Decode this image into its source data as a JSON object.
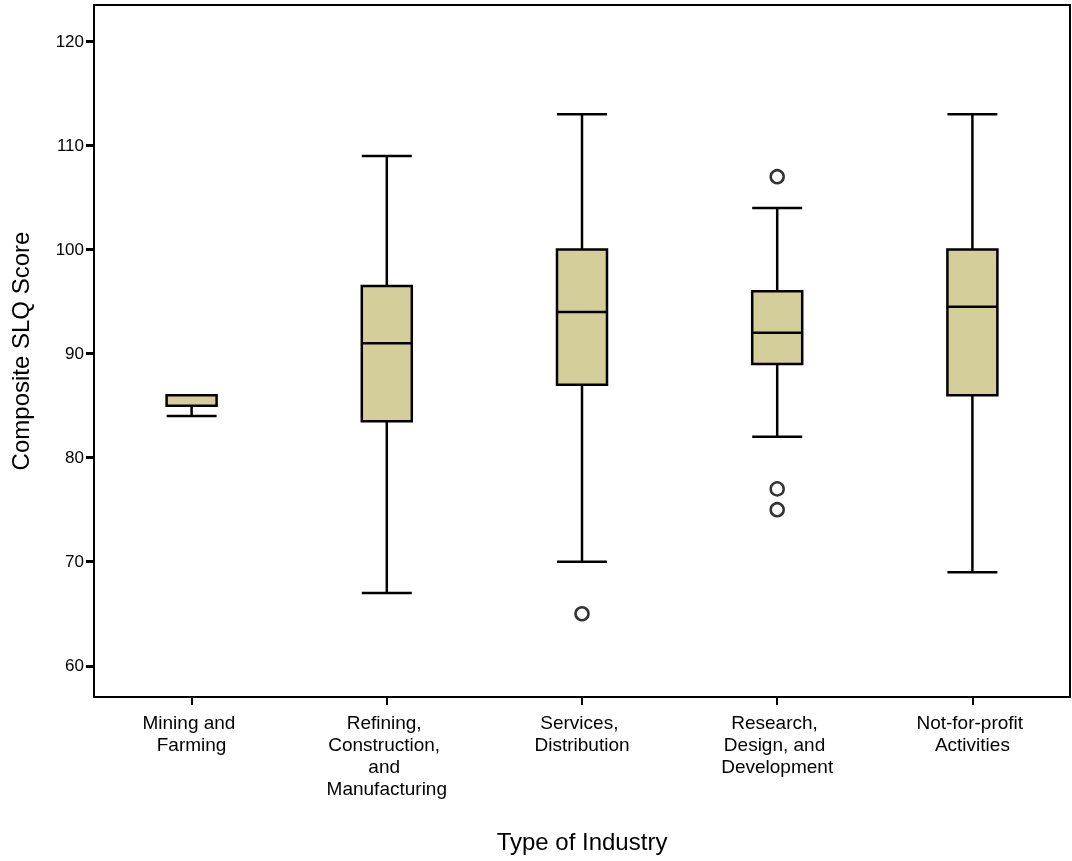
{
  "chart_data": {
    "type": "box",
    "xlabel": "Type of Industry",
    "ylabel": "Composite SLQ Score",
    "categories": [
      "Mining and Farming",
      "Refining, Construction, and Manufacturing",
      "Services, Distribution",
      "Research, Design, and Development",
      "Not-for-profit Activities"
    ],
    "color": "#d4ce9a",
    "boxes": [
      {
        "low": 84,
        "q1": 85,
        "median": 86,
        "q3": 86,
        "high": 86
      },
      {
        "low": 67,
        "q1": 83.5,
        "median": 91,
        "q3": 96.5,
        "high": 109
      },
      {
        "low": 70,
        "q1": 87,
        "median": 94,
        "q3": 100,
        "high": 113,
        "outliers": [
          65
        ]
      },
      {
        "low": 82,
        "q1": 89,
        "median": 92,
        "q3": 96,
        "high": 104,
        "outliers": [
          107,
          77,
          75
        ]
      },
      {
        "low": 69,
        "q1": 86,
        "median": 94.5,
        "q3": 100,
        "high": 113
      }
    ],
    "ylim": [
      57,
      123.5
    ],
    "yticks": [
      60,
      70,
      80,
      90,
      100,
      110,
      120
    ],
    "grid": false
  }
}
